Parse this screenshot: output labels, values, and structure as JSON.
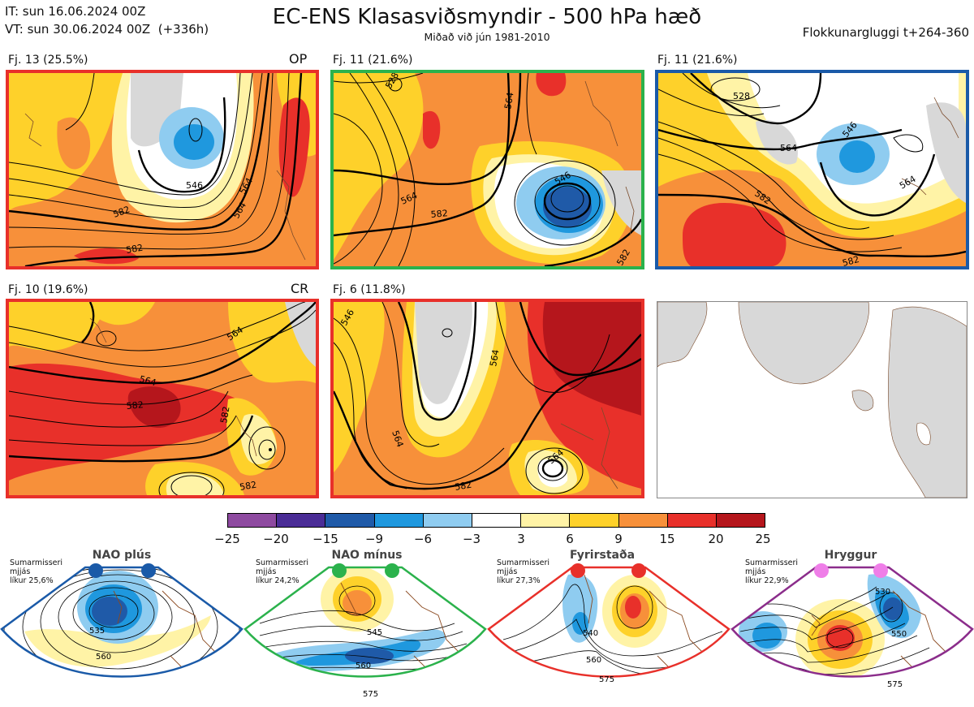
{
  "header": {
    "it_line": "IT: sun 16.06.2024 00Z",
    "vt_line": "VT: sun 30.06.2024 00Z  (+336h)",
    "title": "EC-ENS Klasasviðsmyndir - 500 hPa hæð",
    "subtitle": "Miðað við jún 1981-2010",
    "window": "Flokkunargluggi t+264-360"
  },
  "panels": [
    {
      "label": "Fj. 13 (25.5%)",
      "tag": "OP",
      "frame_color": "#e8302a",
      "contour_labels": [
        "546",
        "564",
        "582",
        "564",
        "582"
      ]
    },
    {
      "label": "Fj. 11 (21.6%)",
      "tag": "",
      "frame_color": "#2bb24c",
      "contour_labels": [
        "528",
        "546",
        "564",
        "582",
        "564",
        "582"
      ]
    },
    {
      "label": "Fj. 11 (21.6%)",
      "tag": "",
      "frame_color": "#1a5aa8",
      "contour_labels": [
        "528",
        "546",
        "564",
        "582",
        "564",
        "582"
      ]
    },
    {
      "label": "Fj. 10 (19.6%)",
      "tag": "CR",
      "frame_color": "#e8302a",
      "contour_labels": [
        "564",
        "582",
        "564",
        "582",
        "582"
      ]
    },
    {
      "label": "Fj. 6 (11.8%)",
      "tag": "",
      "frame_color": "#e8302a",
      "contour_labels": [
        "546",
        "564",
        "582",
        "564",
        "564"
      ]
    }
  ],
  "colorbar": {
    "ticks": [
      "−25",
      "−20",
      "−15",
      "−9",
      "−6",
      "−3",
      "3",
      "6",
      "9",
      "15",
      "20",
      "25"
    ],
    "colors": [
      "#8e4aa0",
      "#4a2c96",
      "#1f5aa8",
      "#1f98de",
      "#8fccf0",
      "#ffffff",
      "#fff3a6",
      "#fed12a",
      "#f7903a",
      "#e8302a",
      "#b5161c"
    ]
  },
  "regimes": [
    {
      "title": "NAO plús",
      "note": "Sumarmisseri\nmjjás\nlíkur 25,6%",
      "color": "#1a5aa8",
      "labels": [
        "535",
        "560"
      ]
    },
    {
      "title": "NAO mínus",
      "note": "Sumarmisseri\nmjjás\nlíkur 24,2%",
      "color": "#2bb24c",
      "labels": [
        "545",
        "560",
        "575"
      ]
    },
    {
      "title": "Fyrirstaða",
      "note": "Sumarmisseri\nmjjás\nlíkur 27,3%",
      "color": "#e8302a",
      "labels": [
        "540",
        "560",
        "575"
      ]
    },
    {
      "title": "Hryggur",
      "note": "Sumarmisseri\nmjjás\nlíkur 22,9%",
      "color": "#8b2d8b",
      "dot_color": "#ef7ee8",
      "labels": [
        "530",
        "550",
        "575"
      ]
    }
  ]
}
